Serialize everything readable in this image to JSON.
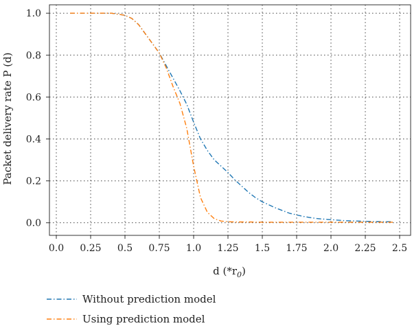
{
  "chart_data": {
    "type": "line",
    "title": "",
    "xlabel": "d (*r",
    "xlabel_sub": "0",
    "xlabel_close": ")",
    "ylabel": "Packet delivery rate P (d)",
    "xlim": [
      -0.05,
      2.58
    ],
    "ylim": [
      -0.06,
      1.04
    ],
    "xticks": [
      0.0,
      0.25,
      0.5,
      0.75,
      1.0,
      1.25,
      1.5,
      1.75,
      2.0,
      2.25,
      2.5
    ],
    "xtick_labels": [
      "0.0",
      "0.25",
      "0.5",
      "0.75",
      "1.0",
      "1.25",
      "1.5",
      "1.75",
      "2.0",
      "2.25",
      "2.5"
    ],
    "yticks": [
      0.0,
      0.2,
      0.4,
      0.6,
      0.8,
      1.0
    ],
    "ytick_labels": [
      "0.0",
      "0.2",
      "0.4",
      "0.6",
      "0.8",
      "1.0"
    ],
    "grid": true,
    "legend_position": "below",
    "series": [
      {
        "name": "Without prediction model",
        "color": "#1f77b4",
        "x": [
          0.1,
          0.2,
          0.3,
          0.4,
          0.5,
          0.55,
          0.6,
          0.65,
          0.7,
          0.75,
          0.8,
          0.85,
          0.9,
          0.95,
          1.0,
          1.05,
          1.1,
          1.15,
          1.2,
          1.25,
          1.3,
          1.35,
          1.4,
          1.45,
          1.5,
          1.6,
          1.7,
          1.8,
          1.9,
          2.0,
          2.1,
          2.2,
          2.3,
          2.4,
          2.45
        ],
        "y": [
          1.0,
          1.0,
          1.0,
          1.0,
          0.99,
          0.975,
          0.945,
          0.9,
          0.855,
          0.81,
          0.75,
          0.69,
          0.63,
          0.565,
          0.48,
          0.4,
          0.345,
          0.3,
          0.27,
          0.24,
          0.205,
          0.175,
          0.145,
          0.12,
          0.1,
          0.07,
          0.045,
          0.03,
          0.02,
          0.015,
          0.01,
          0.008,
          0.006,
          0.005,
          0.005
        ]
      },
      {
        "name": "Using prediction model",
        "color": "#ff7f0e",
        "x": [
          0.1,
          0.2,
          0.3,
          0.4,
          0.5,
          0.55,
          0.6,
          0.65,
          0.7,
          0.75,
          0.8,
          0.85,
          0.9,
          0.95,
          1.0,
          1.05,
          1.1,
          1.15,
          1.2,
          1.25,
          1.3,
          1.4,
          1.5,
          1.7,
          1.9,
          2.1,
          2.3,
          2.45
        ],
        "y": [
          1.0,
          1.0,
          1.0,
          1.0,
          0.99,
          0.975,
          0.945,
          0.9,
          0.855,
          0.81,
          0.74,
          0.65,
          0.57,
          0.45,
          0.27,
          0.12,
          0.05,
          0.02,
          0.008,
          0.005,
          0.004,
          0.004,
          0.003,
          0.003,
          0.003,
          0.003,
          0.003,
          0.003
        ]
      }
    ]
  }
}
